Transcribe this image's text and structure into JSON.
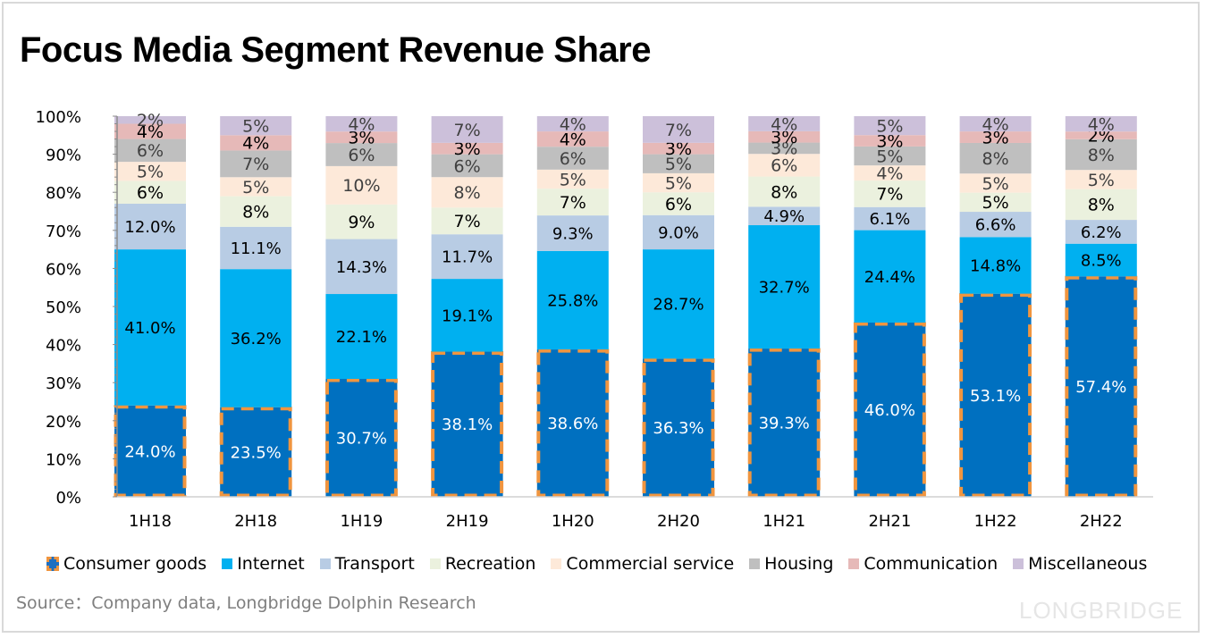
{
  "watermark": "LONGBRIDGE",
  "source": "Source：Company data, Longbridge Dolphin Research",
  "chart_data": {
    "type": "bar",
    "stacked": true,
    "title": "Focus Media Segment Revenue Share",
    "xlabel": "",
    "ylabel": "",
    "ylim": [
      0,
      100
    ],
    "yticks": [
      "0%",
      "10%",
      "20%",
      "30%",
      "40%",
      "50%",
      "60%",
      "70%",
      "80%",
      "90%",
      "100%"
    ],
    "grid": false,
    "legend_position": "bottom",
    "categories": [
      "1H18",
      "2H18",
      "1H19",
      "2H19",
      "1H20",
      "2H20",
      "1H21",
      "2H21",
      "1H22",
      "2H22"
    ],
    "series": [
      {
        "name": "Consumer goods",
        "color": "#0070c0",
        "label_color": "#ffffff",
        "highlight_border": "#f0953f",
        "values": [
          24.0,
          23.5,
          30.7,
          38.1,
          38.6,
          36.3,
          39.3,
          46.0,
          53.1,
          57.4
        ],
        "labels": [
          "24.0%",
          "23.5%",
          "30.7%",
          "38.1%",
          "38.6%",
          "36.3%",
          "39.3%",
          "46.0%",
          "53.1%",
          "57.4%"
        ]
      },
      {
        "name": "Internet",
        "color": "#00b0f0",
        "label_color": "#000000",
        "values": [
          41.0,
          36.2,
          22.1,
          19.1,
          25.8,
          28.7,
          32.7,
          24.4,
          14.8,
          8.5
        ],
        "labels": [
          "41.0%",
          "36.2%",
          "22.1%",
          "19.1%",
          "25.8%",
          "28.7%",
          "32.7%",
          "24.4%",
          "14.8%",
          "8.5%"
        ]
      },
      {
        "name": "Transport",
        "color": "#b8cce4",
        "label_color": "#000000",
        "values": [
          12.0,
          11.1,
          14.3,
          11.7,
          9.3,
          9.0,
          4.9,
          6.1,
          6.6,
          6.2
        ],
        "labels": [
          "12.0%",
          "11.1%",
          "14.3%",
          "11.7%",
          "9.3%",
          "9.0%",
          "4.9%",
          "6.1%",
          "6.6%",
          "6.2%"
        ]
      },
      {
        "name": "Recreation",
        "color": "#ebf1de",
        "label_color": "#000000",
        "values": [
          6,
          8,
          9,
          7,
          7,
          6,
          8,
          7,
          5,
          8
        ],
        "labels": [
          "6%",
          "8%",
          "9%",
          "7%",
          "7%",
          "6%",
          "8%",
          "7%",
          "5%",
          "8%"
        ]
      },
      {
        "name": "Commercial service",
        "color": "#fde9d9",
        "label_color": "#404040",
        "values": [
          5,
          5,
          10,
          8,
          5,
          5,
          6,
          4,
          5,
          5
        ],
        "labels": [
          "5%",
          "5%",
          "10%",
          "8%",
          "5%",
          "5%",
          "6%",
          "4%",
          "5%",
          "5%"
        ]
      },
      {
        "name": "Housing",
        "color": "#bfbfbf",
        "label_color": "#404040",
        "values": [
          6,
          7,
          6,
          6,
          6,
          5,
          3,
          5,
          8,
          8
        ],
        "labels": [
          "6%",
          "7%",
          "6%",
          "6%",
          "6%",
          "5%",
          "3%",
          "5%",
          "8%",
          "8%"
        ]
      },
      {
        "name": "Communication",
        "color": "#e6b9b8",
        "label_color": "#000000",
        "values": [
          4,
          4,
          3,
          3,
          4,
          3,
          3,
          3,
          3,
          2
        ],
        "labels": [
          "4%",
          "4%",
          "3%",
          "3%",
          "4%",
          "3%",
          "3%",
          "3%",
          "3%",
          "2%"
        ]
      },
      {
        "name": "Miscellaneous",
        "color": "#ccc0da",
        "label_color": "#404040",
        "values": [
          2,
          5,
          4,
          7,
          4,
          7,
          4,
          5,
          4,
          4
        ],
        "labels": [
          "2%",
          "5%",
          "4%",
          "7%",
          "4%",
          "7%",
          "4%",
          "5%",
          "4%",
          "4%"
        ]
      }
    ]
  }
}
